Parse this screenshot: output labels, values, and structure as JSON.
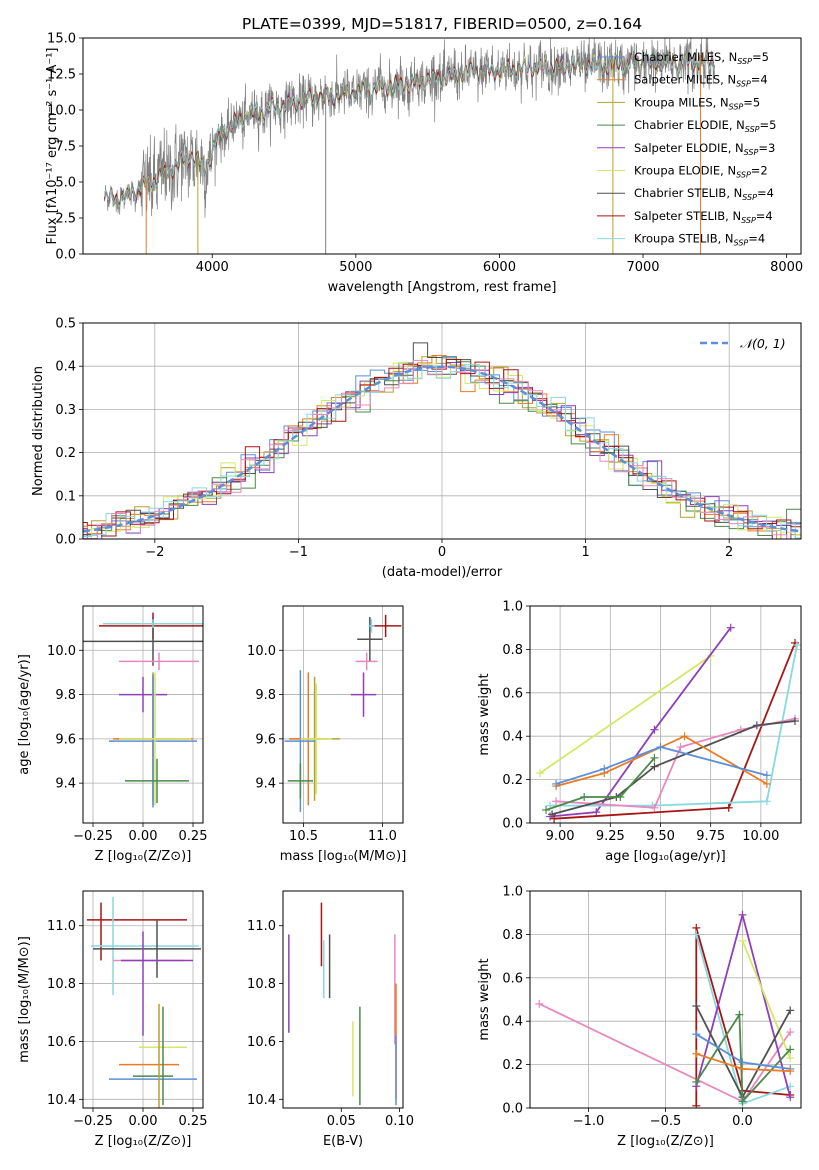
{
  "colors": {
    "chabrier_miles": "#5b8fd8",
    "salpeter_miles": "#e87d24",
    "kroupa_miles": "#b5a22c",
    "chabrier_elodie": "#4a8a4a",
    "salpeter_elodie": "#8f3fb8",
    "kroupa_elodie": "#d4e867",
    "chabrier_stelib": "#505050",
    "salpeter_stelib": "#a81414",
    "kroupa_stelib": "#88d8e0",
    "pink": "#e888c0",
    "data": "#808080"
  },
  "chart_data": [
    {
      "id": "spectrum",
      "type": "line",
      "title": "PLATE=0399, MJD=51817, FIBERID=0500, z=0.164",
      "xlabel": "wavelength [Angstrom, rest frame]",
      "ylabel": "Flux [fλ10⁻¹⁷ erg cm⁻² s⁻¹ A⁻¹]",
      "xlim": [
        3100,
        8100
      ],
      "ylim": [
        0,
        15
      ],
      "xticks": [
        4000,
        5000,
        6000,
        7000,
        8000
      ],
      "yticks": [
        0.0,
        2.5,
        5.0,
        7.5,
        10.0,
        12.5,
        15.0
      ],
      "legend_position": "upper-right",
      "grid": false,
      "legend": [
        {
          "label": "Chabrier MILES, N",
          "sub": "SSP",
          "value": "=5",
          "color_key": "chabrier_miles"
        },
        {
          "label": "Salpeter MILES, N",
          "sub": "SSP",
          "value": "=4",
          "color_key": "salpeter_miles"
        },
        {
          "label": "Kroupa MILES, N",
          "sub": "SSP",
          "value": "=5",
          "color_key": "kroupa_miles"
        },
        {
          "label": "Chabrier ELODIE, N",
          "sub": "SSP",
          "value": "=5",
          "color_key": "chabrier_elodie"
        },
        {
          "label": "Salpeter ELODIE, N",
          "sub": "SSP",
          "value": "=3",
          "color_key": "salpeter_elodie"
        },
        {
          "label": "Kroupa ELODIE, N",
          "sub": "SSP",
          "value": "=2",
          "color_key": "kroupa_elodie"
        },
        {
          "label": "Chabrier STELIB, N",
          "sub": "SSP",
          "value": "=4",
          "color_key": "chabrier_stelib"
        },
        {
          "label": "Salpeter STELIB, N",
          "sub": "SSP",
          "value": "=4",
          "color_key": "salpeter_stelib"
        },
        {
          "label": "Kroupa STELIB, N",
          "sub": "SSP",
          "value": "=4",
          "color_key": "kroupa_stelib"
        }
      ],
      "continuum": [
        [
          3250,
          3.8
        ],
        [
          3400,
          4.0
        ],
        [
          3550,
          4.8
        ],
        [
          3700,
          5.8
        ],
        [
          3850,
          6.8
        ],
        [
          3950,
          6.0
        ],
        [
          4050,
          8.2
        ],
        [
          4200,
          9.4
        ],
        [
          4400,
          10.1
        ],
        [
          4600,
          10.6
        ],
        [
          4800,
          11.0
        ],
        [
          5000,
          11.2
        ],
        [
          5200,
          11.6
        ],
        [
          5400,
          11.9
        ],
        [
          5600,
          12.3
        ],
        [
          5800,
          12.6
        ],
        [
          6000,
          12.8
        ],
        [
          6300,
          13.0
        ],
        [
          6600,
          13.1
        ],
        [
          6900,
          13.2
        ],
        [
          7200,
          13.3
        ],
        [
          7500,
          13.35
        ]
      ],
      "drops": [
        {
          "x": 3540,
          "color_key": "salpeter_miles"
        },
        {
          "x": 3900,
          "color_key": "kroupa_miles"
        },
        {
          "x": 4790,
          "color_key": "data"
        },
        {
          "x": 6790,
          "color_key": "kroupa_miles"
        },
        {
          "x": 7400,
          "color_key": "salpeter_miles"
        }
      ]
    },
    {
      "id": "residuals",
      "type": "histogram",
      "xlabel": "(data-model)/error",
      "ylabel": "Normed distribution",
      "xlim": [
        -2.5,
        2.5
      ],
      "ylim": [
        0,
        0.5
      ],
      "xticks": [
        -2,
        -1,
        0,
        1,
        2
      ],
      "yticks": [
        0.0,
        0.1,
        0.2,
        0.3,
        0.4,
        0.5
      ],
      "grid": true,
      "legend_position": "upper-right",
      "legend": [
        {
          "label": "𝒩(0, 1)",
          "color_key": "chabrier_miles"
        }
      ],
      "bin_width": 0.1
    },
    {
      "id": "age_vs_z",
      "type": "errorbar",
      "xlabel": "Z [log₁₀(Z/Z⊙)]",
      "ylabel": "age  [log₁₀(age/yr)]",
      "xlim": [
        -0.3,
        0.3
      ],
      "ylim": [
        9.22,
        10.2
      ],
      "xticks": [
        -0.25,
        0.0,
        0.25
      ],
      "xtick_labels": [
        "−0.25",
        "0.00",
        "0.25"
      ],
      "yticks": [
        9.4,
        9.6,
        9.8,
        10.0
      ],
      "grid": true,
      "points": [
        {
          "x": 0.05,
          "y": 10.11,
          "xerr": 0.27,
          "yerr": 0.06,
          "color_key": "salpeter_stelib"
        },
        {
          "x": 0.05,
          "y": 10.04,
          "xerr": 0.37,
          "yerr": 0.11,
          "color_key": "chabrier_stelib"
        },
        {
          "x": 0.05,
          "y": 10.12,
          "xerr": 0.25,
          "yerr": 0.02,
          "color_key": "kroupa_stelib"
        },
        {
          "x": 0.08,
          "y": 9.95,
          "xerr": 0.2,
          "yerr": 0.04,
          "color_key": "pink"
        },
        {
          "x": 0.0,
          "y": 9.8,
          "xerr": 0.12,
          "yerr": 0.08,
          "color_key": "salpeter_elodie"
        },
        {
          "x": 0.05,
          "y": 9.6,
          "xerr": 0.18,
          "yerr": 0.3,
          "color_key": "kroupa_miles"
        },
        {
          "x": 0.05,
          "y": 9.6,
          "xerr": 0.2,
          "yerr": 0.28,
          "color_key": "salpeter_miles"
        },
        {
          "x": 0.05,
          "y": 9.59,
          "xerr": 0.22,
          "yerr": 0.3,
          "color_key": "chabrier_miles"
        },
        {
          "x": 0.06,
          "y": 9.6,
          "xerr": 0.18,
          "yerr": 0.3,
          "color_key": "kroupa_elodie"
        },
        {
          "x": 0.07,
          "y": 9.41,
          "xerr": 0.16,
          "yerr": 0.1,
          "color_key": "chabrier_elodie"
        }
      ]
    },
    {
      "id": "age_vs_mass",
      "type": "errorbar",
      "xlabel": "mass [log₁₀(M/M⊙)]",
      "ylabel": "",
      "xlim": [
        10.37,
        11.13
      ],
      "ylim": [
        9.22,
        10.2
      ],
      "xticks": [
        10.5,
        11.0
      ],
      "yticks": [
        9.4,
        9.6,
        9.8,
        10.0
      ],
      "grid": true,
      "points": [
        {
          "x": 11.02,
          "y": 10.11,
          "xerr": 0.1,
          "yerr": 0.05,
          "color_key": "salpeter_stelib"
        },
        {
          "x": 10.92,
          "y": 10.05,
          "xerr": 0.08,
          "yerr": 0.1,
          "color_key": "chabrier_stelib"
        },
        {
          "x": 10.93,
          "y": 10.11,
          "xerr": 0.02,
          "yerr": 0.03,
          "color_key": "kroupa_stelib"
        },
        {
          "x": 10.9,
          "y": 9.95,
          "xerr": 0.07,
          "yerr": 0.04,
          "color_key": "pink"
        },
        {
          "x": 10.88,
          "y": 9.8,
          "xerr": 0.08,
          "yerr": 0.1,
          "color_key": "salpeter_elodie"
        },
        {
          "x": 10.57,
          "y": 9.6,
          "xerr": 0.16,
          "yerr": 0.28,
          "color_key": "kroupa_miles"
        },
        {
          "x": 10.53,
          "y": 9.6,
          "xerr": 0.12,
          "yerr": 0.3,
          "color_key": "salpeter_miles"
        },
        {
          "x": 10.48,
          "y": 9.59,
          "xerr": 0.1,
          "yerr": 0.32,
          "color_key": "chabrier_miles"
        },
        {
          "x": 10.58,
          "y": 9.6,
          "xerr": 0.1,
          "yerr": 0.25,
          "color_key": "kroupa_elodie"
        },
        {
          "x": 10.48,
          "y": 9.41,
          "xerr": 0.08,
          "yerr": 0.08,
          "color_key": "chabrier_elodie"
        }
      ]
    },
    {
      "id": "massweight_vs_age",
      "type": "line",
      "xlabel": "age  [log₁₀(age/yr)]",
      "ylabel": "mass weight",
      "xlim": [
        8.85,
        10.2
      ],
      "ylim": [
        0,
        1
      ],
      "xticks": [
        9.0,
        9.25,
        9.5,
        9.75,
        10.0
      ],
      "yticks": [
        0.0,
        0.2,
        0.4,
        0.6,
        0.8,
        1.0
      ],
      "grid": true,
      "series": [
        {
          "color_key": "kroupa_elodie",
          "x": [
            8.9,
            9.75
          ],
          "y": [
            0.23,
            0.77
          ]
        },
        {
          "color_key": "salpeter_elodie",
          "x": [
            8.95,
            9.18,
            9.47,
            9.85
          ],
          "y": [
            0.03,
            0.05,
            0.43,
            0.9
          ]
        },
        {
          "color_key": "salpeter_stelib",
          "x": [
            8.97,
            9.84,
            10.17
          ],
          "y": [
            0.02,
            0.07,
            0.83
          ]
        },
        {
          "color_key": "kroupa_stelib",
          "x": [
            8.95,
            9.46,
            10.03,
            10.18
          ],
          "y": [
            0.08,
            0.08,
            0.1,
            0.82
          ]
        },
        {
          "color_key": "pink",
          "x": [
            8.98,
            9.47,
            9.6,
            9.9,
            10.17
          ],
          "y": [
            0.1,
            0.07,
            0.35,
            0.43,
            0.48
          ]
        },
        {
          "color_key": "chabrier_stelib",
          "x": [
            8.96,
            9.28,
            9.47,
            9.98,
            10.17
          ],
          "y": [
            0.04,
            0.12,
            0.26,
            0.45,
            0.47
          ]
        },
        {
          "color_key": "salpeter_miles",
          "x": [
            8.98,
            9.22,
            9.62,
            10.03
          ],
          "y": [
            0.17,
            0.23,
            0.4,
            0.18
          ]
        },
        {
          "color_key": "chabrier_miles",
          "x": [
            8.98,
            9.22,
            9.5,
            10.03
          ],
          "y": [
            0.18,
            0.25,
            0.35,
            0.22
          ]
        },
        {
          "color_key": "chabrier_elodie",
          "x": [
            8.93,
            9.12,
            9.3,
            9.47
          ],
          "y": [
            0.06,
            0.12,
            0.12,
            0.3
          ]
        }
      ]
    },
    {
      "id": "mass_vs_z",
      "type": "errorbar",
      "xlabel": "Z [log₁₀(Z/Z⊙)]",
      "ylabel": "mass [log₁₀(M/M⊙)]",
      "xlim": [
        -0.3,
        0.3
      ],
      "ylim": [
        10.37,
        11.12
      ],
      "xticks": [
        -0.25,
        0.0,
        0.25
      ],
      "xtick_labels": [
        "−0.25",
        "0.00",
        "0.25"
      ],
      "yticks": [
        10.4,
        10.6,
        10.8,
        11.0
      ],
      "grid": true,
      "points": [
        {
          "x": -0.03,
          "y": 11.02,
          "xerr": 0.25,
          "yerr": 0.0,
          "color_key": "salpeter_stelib"
        },
        {
          "x": -0.21,
          "y": 10.98,
          "xerr": 0.0,
          "yerr": 0.1,
          "color_key": "salpeter_stelib"
        },
        {
          "x": 0.01,
          "y": 10.93,
          "xerr": 0.27,
          "yerr": 0.0,
          "color_key": "kroupa_stelib"
        },
        {
          "x": -0.15,
          "y": 10.93,
          "xerr": 0.0,
          "yerr": 0.17,
          "color_key": "kroupa_stelib"
        },
        {
          "x": 0.02,
          "y": 10.92,
          "xerr": 0.27,
          "yerr": 0.0,
          "color_key": "chabrier_stelib"
        },
        {
          "x": 0.07,
          "y": 10.92,
          "xerr": 0.0,
          "yerr": 0.1,
          "color_key": "chabrier_stelib"
        },
        {
          "x": 0.03,
          "y": 10.88,
          "xerr": 0.18,
          "yerr": 0.0,
          "color_key": "pink"
        },
        {
          "x": 0.07,
          "y": 10.88,
          "xerr": 0.18,
          "yerr": 0.0,
          "color_key": "salpeter_elodie"
        },
        {
          "x": 0.0,
          "y": 10.8,
          "xerr": 0.0,
          "yerr": 0.18,
          "color_key": "salpeter_elodie"
        },
        {
          "x": 0.1,
          "y": 10.58,
          "xerr": 0.12,
          "yerr": 0.0,
          "color_key": "kroupa_elodie"
        },
        {
          "x": 0.03,
          "y": 10.52,
          "xerr": 0.15,
          "yerr": 0.0,
          "color_key": "salpeter_miles"
        },
        {
          "x": 0.05,
          "y": 10.48,
          "xerr": 0.1,
          "yerr": 0.0,
          "color_key": "chabrier_elodie"
        },
        {
          "x": 0.05,
          "y": 10.47,
          "xerr": 0.22,
          "yerr": 0.0,
          "color_key": "chabrier_miles"
        },
        {
          "x": 0.08,
          "y": 10.55,
          "xerr": 0.0,
          "yerr": 0.18,
          "color_key": "kroupa_miles"
        },
        {
          "x": 0.1,
          "y": 10.55,
          "xerr": 0.0,
          "yerr": 0.17,
          "color_key": "chabrier_elodie"
        }
      ]
    },
    {
      "id": "mass_vs_ebv",
      "type": "errorbar",
      "xlabel": "E(B-V)",
      "ylabel": "",
      "xlim": [
        0.0,
        0.103
      ],
      "ylim": [
        10.37,
        11.12
      ],
      "xticks": [
        0.05,
        0.1
      ],
      "xtick_labels": [
        "0.05",
        "0.10"
      ],
      "yticks": [
        10.4,
        10.6,
        10.8,
        11.0
      ],
      "grid": false,
      "points": [
        {
          "x": 0.005,
          "y": 10.8,
          "xerr": 0.0,
          "yerr": 0.17,
          "color_key": "salpeter_elodie"
        },
        {
          "x": 0.033,
          "y": 10.97,
          "xerr": 0.0,
          "yerr": 0.11,
          "color_key": "salpeter_stelib"
        },
        {
          "x": 0.035,
          "y": 10.85,
          "xerr": 0.0,
          "yerr": 0.1,
          "color_key": "kroupa_stelib"
        },
        {
          "x": 0.04,
          "y": 10.86,
          "xerr": 0.0,
          "yerr": 0.11,
          "color_key": "chabrier_stelib"
        },
        {
          "x": 0.06,
          "y": 10.54,
          "xerr": 0.0,
          "yerr": 0.13,
          "color_key": "kroupa_elodie"
        },
        {
          "x": 0.066,
          "y": 10.55,
          "xerr": 0.0,
          "yerr": 0.17,
          "color_key": "chabrier_elodie"
        },
        {
          "x": 0.096,
          "y": 10.78,
          "xerr": 0.0,
          "yerr": 0.19,
          "color_key": "pink"
        },
        {
          "x": 0.097,
          "y": 10.6,
          "xerr": 0.0,
          "yerr": 0.2,
          "color_key": "salpeter_miles"
        },
        {
          "x": 0.097,
          "y": 10.5,
          "xerr": 0.0,
          "yerr": 0.12,
          "color_key": "chabrier_miles"
        }
      ]
    },
    {
      "id": "massweight_vs_z",
      "type": "line",
      "xlabel": "Z [log₁₀(Z/Z⊙)]",
      "ylabel": "mass weight",
      "xlim": [
        -1.38,
        0.38
      ],
      "ylim": [
        0,
        1
      ],
      "xticks": [
        -1.0,
        -0.5,
        0.0
      ],
      "xtick_labels": [
        "−1.0",
        "−0.5",
        "0.0"
      ],
      "yticks": [
        0.0,
        0.2,
        0.4,
        0.6,
        0.8,
        1.0
      ],
      "grid": true,
      "series": [
        {
          "color_key": "pink",
          "x": [
            -1.32,
            0.0,
            0.31
          ],
          "y": [
            0.48,
            0.03,
            0.35
          ]
        },
        {
          "color_key": "salpeter_stelib",
          "x": [
            -0.3,
            -0.3,
            0.0,
            0.31
          ],
          "y": [
            0.01,
            0.83,
            0.08,
            0.06
          ]
        },
        {
          "color_key": "kroupa_stelib",
          "x": [
            -0.3,
            0.0,
            0.31
          ],
          "y": [
            0.8,
            0.02,
            0.1
          ]
        },
        {
          "color_key": "salpeter_elodie",
          "x": [
            -0.3,
            0.0,
            0.31
          ],
          "y": [
            0.1,
            0.89,
            0.05
          ]
        },
        {
          "color_key": "kroupa_elodie",
          "x": [
            0.0,
            0.31
          ],
          "y": [
            0.77,
            0.23
          ]
        },
        {
          "color_key": "chabrier_stelib",
          "x": [
            -0.3,
            0.0,
            0.31
          ],
          "y": [
            0.47,
            0.05,
            0.45
          ]
        },
        {
          "color_key": "chabrier_elodie",
          "x": [
            -0.3,
            -0.02,
            0.0,
            0.31
          ],
          "y": [
            0.12,
            0.43,
            0.03,
            0.27
          ]
        },
        {
          "color_key": "chabrier_miles",
          "x": [
            -0.3,
            0.0,
            0.31
          ],
          "y": [
            0.34,
            0.21,
            0.18
          ]
        },
        {
          "color_key": "salpeter_miles",
          "x": [
            -0.3,
            0.0,
            0.31
          ],
          "y": [
            0.25,
            0.18,
            0.17
          ]
        }
      ]
    }
  ]
}
